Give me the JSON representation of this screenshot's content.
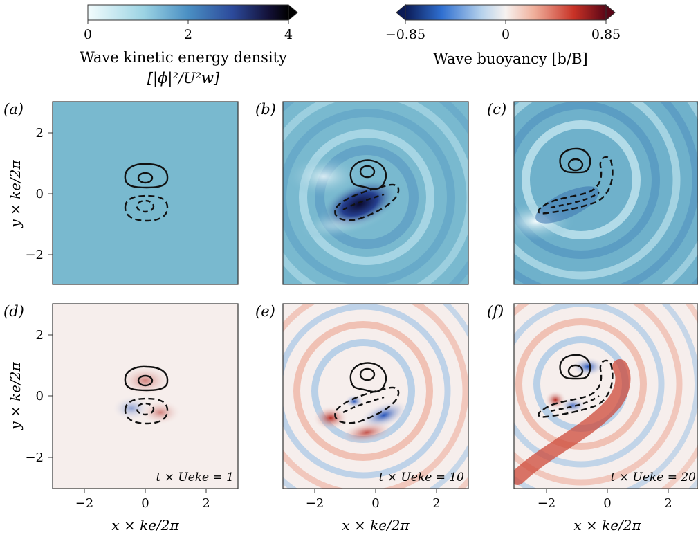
{
  "colors": {
    "energy_colormap": [
      "#f2fcfd",
      "#9bd3e3",
      "#4a8fc3",
      "#2c4a9b",
      "#131138",
      "#000000"
    ],
    "buoyancy_colormap": [
      "#0b1a55",
      "#2f6fd0",
      "#b6d2ec",
      "#f7f2f0",
      "#f0b09c",
      "#c83226",
      "#5a0516"
    ],
    "energy_background": "#79b9cf",
    "buoyancy_background": "#f6eeec",
    "contour": "#111111"
  },
  "colorbars": {
    "energy": {
      "ticks": [
        "0",
        "2",
        "4"
      ],
      "label_line1": "Wave kinetic energy density",
      "label_line2": "[|ϕ|²/U²w]",
      "range": [
        0,
        4
      ],
      "extend": "max"
    },
    "buoyancy": {
      "ticks": [
        "−0.85",
        "0",
        "0.85"
      ],
      "label": "Wave buoyancy [b/B]",
      "range": [
        -0.85,
        0.85
      ],
      "extend": "both"
    }
  },
  "axes": {
    "ylabel": "y × ke/2π",
    "xlabel": "x × ke/2π",
    "xticks": [
      "−2",
      "0",
      "2"
    ],
    "yticks": [
      "2",
      "0",
      "−2"
    ]
  },
  "panels": [
    {
      "label": "(a)",
      "field": "energy",
      "time": ""
    },
    {
      "label": "(b)",
      "field": "energy",
      "time": ""
    },
    {
      "label": "(c)",
      "field": "energy",
      "time": ""
    },
    {
      "label": "(d)",
      "field": "buoyancy",
      "time": "t × Ueke = 1"
    },
    {
      "label": "(e)",
      "field": "buoyancy",
      "time": "t × Ueke = 10"
    },
    {
      "label": "(f)",
      "field": "buoyancy",
      "time": "t × Ueke = 20"
    }
  ],
  "chart_data": {
    "type": "heatmap",
    "xlim": [
      -3.2,
      3.2
    ],
    "ylim": [
      -3.2,
      3.2
    ],
    "grid": false,
    "times": [
      1,
      10,
      20
    ],
    "fields": [
      "wave kinetic energy density",
      "wave buoyancy"
    ],
    "contours": "solid = positive vortex, dashed = negative vortex"
  }
}
